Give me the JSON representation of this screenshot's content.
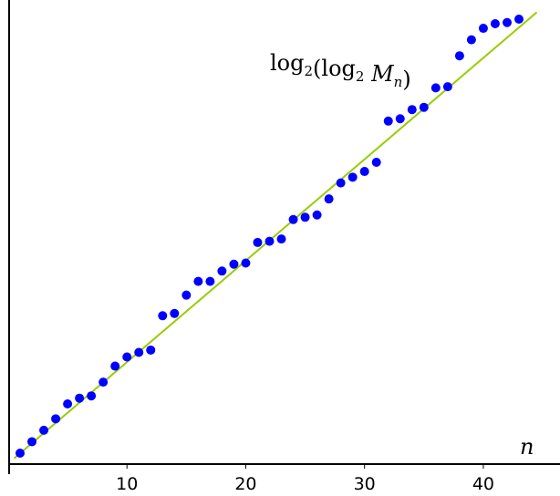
{
  "chart_data": {
    "type": "scatter",
    "title": "",
    "xlabel": "n",
    "ylabel": "",
    "annotation": {
      "parts": [
        {
          "text": "log",
          "style": "normal"
        },
        {
          "text": "2",
          "style": "sub"
        },
        {
          "text": "(log",
          "style": "normal"
        },
        {
          "text": "2",
          "style": "sub"
        },
        {
          "text": " ",
          "style": "normal"
        },
        {
          "text": "M",
          "style": "italic"
        },
        {
          "text": "n",
          "style": "sub-italic"
        },
        {
          "text": ")",
          "style": "normal"
        }
      ]
    },
    "xlim": [
      0,
      46
    ],
    "ylim": [
      0.3,
      39.5
    ],
    "x_ticks": [
      10,
      20,
      30,
      40
    ],
    "x_tick_labels": [
      "10",
      "20",
      "30",
      "40"
    ],
    "grid": false,
    "legend": "none",
    "series": [
      {
        "type": "scatter",
        "color": "#0000ff",
        "x": [
          1,
          2,
          3,
          4,
          5,
          6,
          7,
          8,
          9,
          10,
          11,
          12,
          13,
          14,
          15,
          16,
          17,
          18,
          19,
          20,
          21,
          22,
          23,
          24,
          25,
          26,
          27,
          28,
          29,
          30,
          31,
          32,
          33,
          34,
          35,
          36,
          37,
          38,
          39,
          40,
          41,
          42,
          43
        ],
        "y": [
          1.0,
          2.0,
          3.0,
          4.0,
          5.3,
          5.8,
          6.0,
          7.2,
          8.6,
          9.4,
          9.8,
          10.0,
          13.0,
          13.2,
          14.8,
          16.0,
          16.0,
          16.9,
          17.5,
          17.6,
          19.4,
          19.5,
          19.7,
          21.4,
          21.6,
          21.8,
          23.2,
          24.6,
          25.1,
          25.6,
          26.4,
          30.0,
          30.2,
          31.0,
          31.2,
          32.9,
          33.0,
          35.7,
          37.1,
          38.1,
          38.5,
          38.6,
          38.9
        ]
      },
      {
        "type": "line",
        "color": "#99cc00",
        "x": [
          0.5,
          44.5
        ],
        "y": [
          0.54,
          39.5
        ]
      }
    ]
  }
}
